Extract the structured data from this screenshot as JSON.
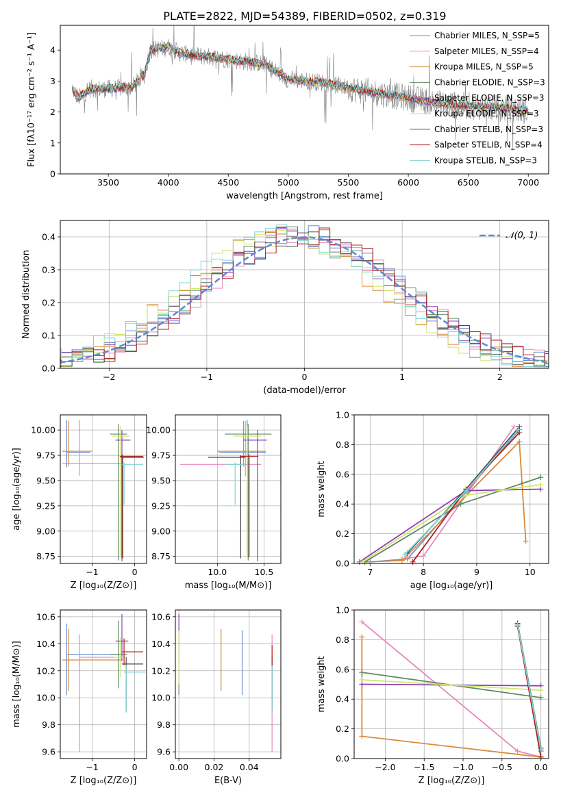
{
  "title": "PLATE=2822, MJD=54389, FIBERID=0502, z=0.319",
  "colors": {
    "Chabrier MILES": "#6a8fd0",
    "Salpeter MILES": "#e589b9",
    "Kroupa MILES": "#d98a3c",
    "Chabrier ELODIE": "#5f8a62",
    "Salpeter ELODIE": "#8e3fb3",
    "Kroupa ELODIE": "#cfe56e",
    "Chabrier STELIB": "#4a4a4a",
    "Salpeter STELIB": "#b0201c",
    "Kroupa STELIB": "#7fd3d3",
    "data": "#808080"
  },
  "chart_data": [
    {
      "id": "spectrum",
      "type": "line",
      "xlabel": "wavelength [Angstrom, rest frame]",
      "ylabel": "Flux [fλ10⁻¹⁷ erg cm⁻² s⁻¹ A⁻¹]",
      "xlim": [
        3100,
        7170
      ],
      "ylim": [
        0,
        4.8
      ],
      "xticks": [
        3500,
        4000,
        4500,
        5000,
        5500,
        6000,
        6500,
        7000
      ],
      "yticks": [
        0,
        1,
        2,
        3,
        4
      ],
      "legend_position": "top-right",
      "legend": [
        "Chabrier MILES, N_SSP=5",
        "Salpeter MILES, N_SSP=4",
        "Kroupa MILES, N_SSP=5",
        "Chabrier ELODIE, N_SSP=3",
        "Salpeter ELODIE, N_SSP=3",
        "Kroupa ELODIE, N_SSP=3",
        "Chabrier STELIB, N_SSP=3",
        "Salpeter STELIB, N_SSP=4",
        "Kroupa STELIB, N_SSP=3"
      ],
      "continuum": {
        "x": [
          3200,
          3250,
          3350,
          3500,
          3700,
          3800,
          3850,
          4000,
          4100,
          4300,
          4500,
          4800,
          5000,
          5300,
          5600,
          6000,
          6300,
          6700,
          7000
        ],
        "y": [
          2.75,
          2.45,
          2.75,
          2.75,
          2.8,
          3.2,
          4.0,
          4.1,
          3.9,
          3.8,
          3.7,
          3.55,
          3.05,
          2.95,
          2.7,
          2.45,
          2.25,
          2.15,
          2.05
        ]
      }
    },
    {
      "id": "residuals",
      "type": "line",
      "xlabel": "(data-model)/error",
      "ylabel": "Normed distribution",
      "xlim": [
        -2.5,
        2.5
      ],
      "ylim": [
        0,
        0.45
      ],
      "xticks": [
        -2,
        -1,
        0,
        1,
        2
      ],
      "yticks": [
        0.0,
        0.1,
        0.2,
        0.3,
        0.4
      ],
      "grid": true,
      "legend": [
        "𝒩(0, 1)"
      ],
      "legend_position": "top-right",
      "gaussian": {
        "mean": 0,
        "sigma": 1
      }
    },
    {
      "id": "age_vs_Z",
      "type": "scatter",
      "xlabel": "Z [log₁₀(Z/Z⊙)]",
      "ylabel": "age  [log₁₀(age/yr)]",
      "xlim": [
        -1.75,
        0.28
      ],
      "ylim": [
        8.68,
        10.15
      ],
      "xticks": [
        -1,
        0
      ],
      "yticks": [
        8.75,
        9.0,
        9.25,
        9.5,
        9.75,
        10.0
      ],
      "grid": true,
      "points": [
        {
          "model": "Chabrier MILES",
          "x": -1.6,
          "y": 9.78,
          "xerr": [
            0,
            0.55
          ],
          "yerr": [
            0.15,
            0.32
          ]
        },
        {
          "model": "Salpeter MILES",
          "x": -1.3,
          "y": 9.67,
          "xerr": [
            0.4,
            1.0
          ],
          "yerr": [
            0.12,
            0.43
          ]
        },
        {
          "model": "Kroupa MILES",
          "x": -1.55,
          "y": 9.79,
          "xerr": [
            0.15,
            0.55
          ],
          "yerr": [
            0.15,
            0.3
          ]
        },
        {
          "model": "Chabrier ELODIE",
          "x": -0.38,
          "y": 9.96,
          "xerr": [
            0.2,
            0.2
          ],
          "yerr": [
            1.25,
            0.1
          ]
        },
        {
          "model": "Salpeter ELODIE",
          "x": -0.3,
          "y": 9.9,
          "xerr": [
            0.15,
            0.2
          ],
          "yerr": [
            1.2,
            0.1
          ]
        },
        {
          "model": "Kroupa ELODIE",
          "x": -0.33,
          "y": 9.94,
          "xerr": [
            0.2,
            0.2
          ],
          "yerr": [
            1.2,
            0.1
          ]
        },
        {
          "model": "Chabrier STELIB",
          "x": -0.28,
          "y": 9.73,
          "xerr": [
            0.05,
            0.5
          ],
          "yerr": [
            1.0,
            0.02
          ]
        },
        {
          "model": "Salpeter STELIB",
          "x": -0.3,
          "y": 9.74,
          "xerr": [
            0.05,
            0.5
          ],
          "yerr": [
            1.0,
            0.02
          ]
        },
        {
          "model": "Kroupa STELIB",
          "x": -0.25,
          "y": 9.66,
          "xerr": [
            0.05,
            0.45
          ],
          "yerr": [
            0.4,
            0.02
          ]
        }
      ]
    },
    {
      "id": "age_vs_mass",
      "type": "scatter",
      "xlabel": "mass [log₁₀(M/M⊙)]",
      "ylabel": "",
      "xlim": [
        9.55,
        10.68
      ],
      "ylim": [
        8.68,
        10.15
      ],
      "xticks": [
        10.0,
        10.5
      ],
      "yticks": [
        8.75,
        9.0,
        9.25,
        9.5,
        9.75,
        10.0
      ],
      "grid": true,
      "points": [
        {
          "model": "Chabrier MILES",
          "x": 10.32,
          "y": 9.78,
          "xerr": [
            0.3,
            0.2
          ],
          "yerr": [
            0.15,
            0.32
          ]
        },
        {
          "model": "Salpeter MILES",
          "x": 10.3,
          "y": 9.66,
          "xerr": [
            0.7,
            0.17
          ],
          "yerr": [
            0.12,
            0.43
          ]
        },
        {
          "model": "Kroupa MILES",
          "x": 10.28,
          "y": 9.79,
          "xerr": [
            0.28,
            0.24
          ],
          "yerr": [
            0.15,
            0.3
          ]
        },
        {
          "model": "Chabrier ELODIE",
          "x": 10.33,
          "y": 9.96,
          "xerr": [
            0.25,
            0.25
          ],
          "yerr": [
            1.25,
            0.1
          ]
        },
        {
          "model": "Salpeter ELODIE",
          "x": 10.43,
          "y": 9.9,
          "xerr": [
            0.15,
            0.1
          ],
          "yerr": [
            1.2,
            0.1
          ]
        },
        {
          "model": "Kroupa ELODIE",
          "x": 10.32,
          "y": 9.94,
          "xerr": [
            0.15,
            0.15
          ],
          "yerr": [
            1.2,
            0.1
          ]
        },
        {
          "model": "Chabrier STELIB",
          "x": 10.25,
          "y": 9.73,
          "xerr": [
            0.35,
            0.05
          ],
          "yerr": [
            1.0,
            0.02
          ]
        },
        {
          "model": "Salpeter STELIB",
          "x": 10.34,
          "y": 9.74,
          "xerr": [
            0.1,
            0.1
          ],
          "yerr": [
            1.0,
            0.02
          ]
        },
        {
          "model": "Kroupa STELIB",
          "x": 10.19,
          "y": 9.66,
          "xerr": [
            0.1,
            0.1
          ],
          "yerr": [
            0.4,
            0.02
          ]
        }
      ]
    },
    {
      "id": "weight_vs_age",
      "type": "line",
      "xlabel": "age  [log₁₀(age/yr)]",
      "ylabel": "mass weight",
      "xlim": [
        6.7,
        10.35
      ],
      "ylim": [
        0,
        1
      ],
      "xticks": [
        7,
        8,
        9,
        10
      ],
      "yticks": [
        0.0,
        0.2,
        0.4,
        0.6,
        0.8,
        1.0
      ],
      "grid": true,
      "series": [
        {
          "model": "Chabrier MILES",
          "x": [
            7.0,
            7.7,
            8.8,
            9.8
          ],
          "y": [
            0.01,
            0.03,
            0.48,
            0.9
          ]
        },
        {
          "model": "Salpeter MILES",
          "x": [
            7.6,
            8.0,
            9.7
          ],
          "y": [
            0.03,
            0.05,
            0.92
          ]
        },
        {
          "model": "Kroupa MILES",
          "x": [
            6.9,
            7.6,
            9.8,
            9.92
          ],
          "y": [
            0.01,
            0.02,
            0.82,
            0.15
          ]
        },
        {
          "model": "Chabrier ELODIE",
          "x": [
            6.9,
            8.7,
            10.2
          ],
          "y": [
            0.01,
            0.4,
            0.58
          ]
        },
        {
          "model": "Salpeter ELODIE",
          "x": [
            6.8,
            8.8,
            10.2
          ],
          "y": [
            0.01,
            0.49,
            0.5
          ]
        },
        {
          "model": "Kroupa ELODIE",
          "x": [
            6.85,
            8.8,
            10.2
          ],
          "y": [
            0.01,
            0.46,
            0.53
          ]
        },
        {
          "model": "Chabrier STELIB",
          "x": [
            7.7,
            8.8,
            9.8
          ],
          "y": [
            0.07,
            0.5,
            0.92
          ]
        },
        {
          "model": "Salpeter STELIB",
          "x": [
            7.8,
            8.8,
            9.8
          ],
          "y": [
            0.01,
            0.5,
            0.88
          ]
        },
        {
          "model": "Kroupa STELIB",
          "x": [
            7.65,
            8.8,
            9.78
          ],
          "y": [
            0.06,
            0.49,
            0.9
          ]
        }
      ]
    },
    {
      "id": "mass_vs_Z",
      "type": "scatter",
      "xlabel": "Z [log₁₀(Z/Z⊙)]",
      "ylabel": "mass [log₁₀(M/M⊙)]",
      "xlim": [
        -1.75,
        0.28
      ],
      "ylim": [
        9.55,
        10.65
      ],
      "xticks": [
        -1,
        0
      ],
      "yticks": [
        9.6,
        9.8,
        10.0,
        10.2,
        10.4,
        10.6
      ],
      "grid": true,
      "points": [
        {
          "model": "Chabrier MILES",
          "x": -1.6,
          "y": 10.32,
          "xerr": [
            0,
            1.3
          ],
          "yerr": [
            0.3,
            0.23
          ]
        },
        {
          "model": "Salpeter MILES",
          "x": -1.3,
          "y": 10.3,
          "xerr": [
            0,
            1.0
          ],
          "yerr": [
            0.7,
            0.17
          ]
        },
        {
          "model": "Kroupa MILES",
          "x": -1.55,
          "y": 10.28,
          "xerr": [
            0.15,
            1.25
          ],
          "yerr": [
            0.23,
            0.23
          ]
        },
        {
          "model": "Chabrier ELODIE",
          "x": -0.38,
          "y": 10.32,
          "xerr": [
            0.2,
            0.2
          ],
          "yerr": [
            0.25,
            0.25
          ]
        },
        {
          "model": "Salpeter ELODIE",
          "x": -0.3,
          "y": 10.42,
          "xerr": [
            0.15,
            0.15
          ],
          "yerr": [
            0.15,
            0.2
          ]
        },
        {
          "model": "Kroupa ELODIE",
          "x": -0.33,
          "y": 10.3,
          "xerr": [
            0.15,
            0.1
          ],
          "yerr": [
            0.15,
            0.15
          ]
        },
        {
          "model": "Chabrier STELIB",
          "x": -0.2,
          "y": 10.25,
          "xerr": [
            0.1,
            0.4
          ],
          "yerr": [
            0.35,
            0.05
          ]
        },
        {
          "model": "Salpeter STELIB",
          "x": -0.25,
          "y": 10.34,
          "xerr": [
            0.05,
            0.45
          ],
          "yerr": [
            0.1,
            0.1
          ]
        },
        {
          "model": "Kroupa STELIB",
          "x": -0.2,
          "y": 10.19,
          "xerr": [
            0.05,
            0.45
          ],
          "yerr": [
            0.3,
            0.05
          ]
        }
      ]
    },
    {
      "id": "mass_vs_EBV",
      "type": "scatter",
      "xlabel": "E(B-V)",
      "ylabel": "",
      "xlim": [
        -0.002,
        0.058
      ],
      "ylim": [
        9.55,
        10.65
      ],
      "xticks": [
        0.0,
        0.02,
        0.04
      ],
      "yticks": [
        9.6,
        9.8,
        10.0,
        10.2,
        10.4,
        10.6
      ],
      "grid": true,
      "points": [
        {
          "model": "Chabrier MILES",
          "x": 0.036,
          "y": 10.32,
          "yerr": [
            0.3,
            0.18
          ]
        },
        {
          "model": "Salpeter MILES",
          "x": 0.053,
          "y": 10.3,
          "yerr": [
            0.7,
            0.17
          ]
        },
        {
          "model": "Kroupa MILES",
          "x": 0.024,
          "y": 10.28,
          "yerr": [
            0.23,
            0.23
          ]
        },
        {
          "model": "Chabrier ELODIE",
          "x": 0.0,
          "y": 10.32,
          "yerr": [
            0.3,
            0.2
          ]
        },
        {
          "model": "Salpeter ELODIE",
          "x": 0.0,
          "y": 10.42,
          "yerr": [
            0.1,
            0.2
          ]
        },
        {
          "model": "Kroupa ELODIE",
          "x": 0.0,
          "y": 10.3,
          "yerr": [
            0.2,
            0.2
          ]
        },
        {
          "model": "Chabrier STELIB",
          "x": 0.053,
          "y": 10.25,
          "yerr": [
            0.35,
            0.05
          ]
        },
        {
          "model": "Salpeter STELIB",
          "x": 0.053,
          "y": 10.34,
          "yerr": [
            0.1,
            0.05
          ]
        },
        {
          "model": "Kroupa STELIB",
          "x": 0.053,
          "y": 10.19,
          "yerr": [
            0.3,
            0.05
          ]
        }
      ]
    },
    {
      "id": "weight_vs_Z",
      "type": "line",
      "xlabel": "Z [log₁₀(Z/Z⊙)]",
      "ylabel": "mass weight",
      "xlim": [
        -2.4,
        0.1
      ],
      "ylim": [
        0,
        1
      ],
      "xticks": [
        -2.0,
        -1.5,
        -1.0,
        -0.5,
        0.0
      ],
      "yticks": [
        0.0,
        0.2,
        0.4,
        0.6,
        0.8,
        1.0
      ],
      "grid": true,
      "series": [
        {
          "model": "Chabrier MILES",
          "x": [
            -0.3,
            0.0
          ],
          "y": [
            0.9,
            0.05
          ]
        },
        {
          "model": "Salpeter MILES",
          "x": [
            -2.3,
            -0.3,
            0.0
          ],
          "y": [
            0.92,
            0.05,
            0.01
          ]
        },
        {
          "model": "Kroupa MILES",
          "x": [
            -2.3,
            -2.3,
            0.0
          ],
          "y": [
            0.82,
            0.15,
            0.01
          ]
        },
        {
          "model": "Chabrier ELODIE",
          "x": [
            -2.3,
            0.0
          ],
          "y": [
            0.58,
            0.41
          ]
        },
        {
          "model": "Salpeter ELODIE",
          "x": [
            -2.3,
            0.0
          ],
          "y": [
            0.5,
            0.49
          ]
        },
        {
          "model": "Kroupa ELODIE",
          "x": [
            -2.3,
            0.0
          ],
          "y": [
            0.53,
            0.46
          ]
        },
        {
          "model": "Chabrier STELIB",
          "x": [
            -0.3,
            0.0
          ],
          "y": [
            0.91,
            0.07
          ]
        },
        {
          "model": "Salpeter STELIB",
          "x": [
            -0.3,
            0.0
          ],
          "y": [
            0.89,
            0.01
          ]
        },
        {
          "model": "Kroupa STELIB",
          "x": [
            -0.3,
            0.0
          ],
          "y": [
            0.9,
            0.06
          ]
        }
      ]
    }
  ]
}
